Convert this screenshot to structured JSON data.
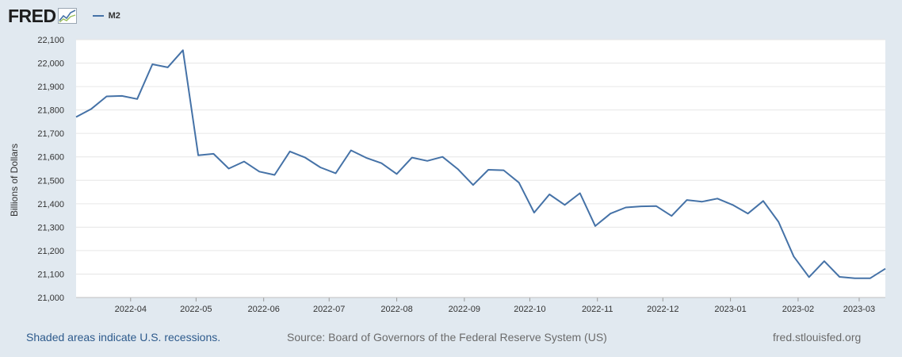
{
  "header": {
    "logo_text": "FRED",
    "series_label": "M2"
  },
  "colors": {
    "background": "#e1e9f0",
    "plot_background": "#ffffff",
    "series_line": "#4572a7",
    "grid": "#e6e6e6",
    "footer_link": "#2d5a8c"
  },
  "chart_data": {
    "type": "line",
    "ylabel": "Billions of Dollars",
    "xlabel": "",
    "ylim": [
      21000,
      22100
    ],
    "yticks": [
      "21,000",
      "21,100",
      "21,200",
      "21,300",
      "21,400",
      "21,500",
      "21,600",
      "21,700",
      "21,800",
      "21,900",
      "22,000",
      "22,100"
    ],
    "xlim": [
      "2022-03-07",
      "2023-03-13"
    ],
    "xticks": [
      "2022-04",
      "2022-05",
      "2022-06",
      "2022-07",
      "2022-08",
      "2022-09",
      "2022-10",
      "2022-11",
      "2022-12",
      "2023-01",
      "2023-02",
      "2023-03"
    ],
    "grid": true,
    "legend": "top-left",
    "series": [
      {
        "name": "M2",
        "x": [
          "2022-03-07",
          "2022-03-14",
          "2022-03-21",
          "2022-03-28",
          "2022-04-04",
          "2022-04-11",
          "2022-04-18",
          "2022-04-25",
          "2022-05-02",
          "2022-05-09",
          "2022-05-16",
          "2022-05-23",
          "2022-05-30",
          "2022-06-06",
          "2022-06-13",
          "2022-06-20",
          "2022-06-27",
          "2022-07-04",
          "2022-07-11",
          "2022-07-18",
          "2022-07-25",
          "2022-08-01",
          "2022-08-08",
          "2022-08-15",
          "2022-08-22",
          "2022-08-29",
          "2022-09-05",
          "2022-09-12",
          "2022-09-19",
          "2022-09-26",
          "2022-10-03",
          "2022-10-10",
          "2022-10-17",
          "2022-10-24",
          "2022-10-31",
          "2022-11-07",
          "2022-11-14",
          "2022-11-21",
          "2022-11-28",
          "2022-12-05",
          "2022-12-12",
          "2022-12-19",
          "2022-12-26",
          "2023-01-02",
          "2023-01-09",
          "2023-01-16",
          "2023-01-23",
          "2023-01-30",
          "2023-02-06",
          "2023-02-13",
          "2023-02-20",
          "2023-02-27",
          "2023-03-06",
          "2023-03-13"
        ],
        "values": [
          21770,
          21805,
          21858,
          21860,
          21847,
          21995,
          21982,
          22055,
          21607,
          21613,
          21550,
          21580,
          21537,
          21523,
          21623,
          21597,
          21555,
          21530,
          21628,
          21596,
          21573,
          21527,
          21597,
          21583,
          21600,
          21548,
          21480,
          21545,
          21543,
          21490,
          21362,
          21440,
          21395,
          21445,
          21305,
          21358,
          21384,
          21389,
          21390,
          21348,
          21416,
          21409,
          21422,
          21395,
          21358,
          21412,
          21323,
          21175,
          21087,
          21155,
          21088,
          21082,
          21082,
          21123
        ]
      }
    ]
  },
  "footer": {
    "note": "Shaded areas indicate U.S. recessions.",
    "source": "Source: Board of Governors of the Federal Reserve System (US)",
    "url": "fred.stlouisfed.org"
  }
}
